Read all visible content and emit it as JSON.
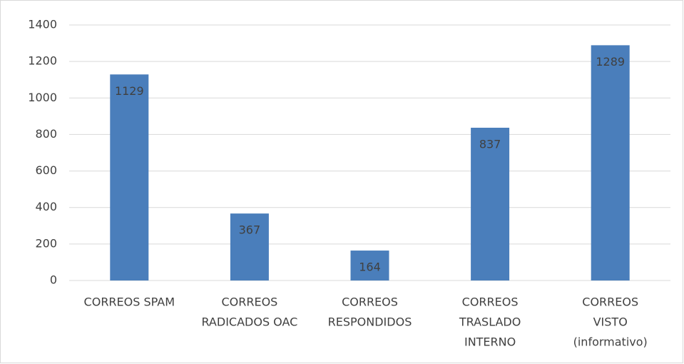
{
  "chart_data": {
    "type": "bar",
    "categories": [
      [
        "CORREOS SPAM"
      ],
      [
        "CORREOS",
        "RADICADOS OAC"
      ],
      [
        "CORREOS",
        "RESPONDIDOS"
      ],
      [
        "CORREOS",
        "TRASLADO",
        "INTERNO"
      ],
      [
        "CORREOS",
        "VISTO",
        "(informativo)"
      ]
    ],
    "values": [
      1129,
      367,
      164,
      837,
      1289
    ],
    "color": "#4a7ebb",
    "ylim": [
      0,
      1400
    ],
    "yticks": [
      0,
      200,
      400,
      600,
      800,
      1000,
      1200,
      1400
    ],
    "grid": true
  }
}
